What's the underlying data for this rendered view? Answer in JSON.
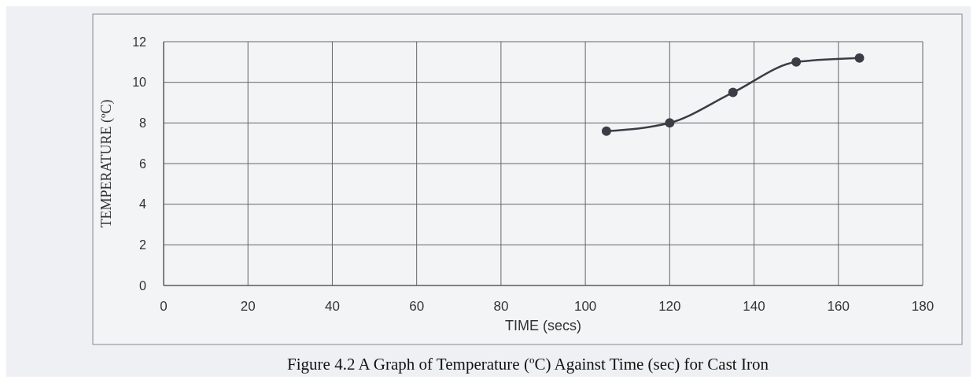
{
  "chart_data": {
    "type": "line",
    "xlabel": "TIME (secs)",
    "ylabel": "TEMPERATURE (ºC)",
    "title": "Figure 4.2 A Graph of Temperature (ºC) Against Time (sec) for Cast Iron",
    "x": [
      105,
      120,
      135,
      150,
      165
    ],
    "series": [
      {
        "color": "#3a3d44",
        "values": [
          7.6,
          8.0,
          9.5,
          11.0,
          11.2
        ]
      }
    ],
    "xlim": [
      0,
      180
    ],
    "xticks": [
      0,
      20,
      40,
      60,
      80,
      100,
      120,
      140,
      160,
      180
    ],
    "ylim": [
      0,
      12
    ],
    "yticks": [
      0,
      2,
      4,
      6,
      8,
      10,
      12
    ],
    "grid": true,
    "marker": "circle",
    "line_style": "solid"
  }
}
